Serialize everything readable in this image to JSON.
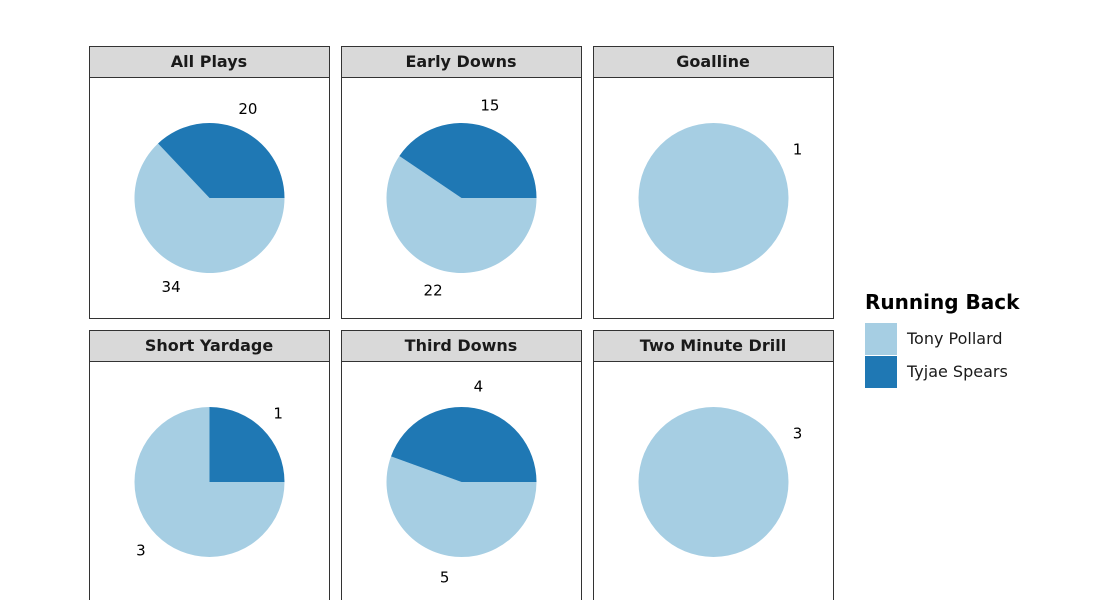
{
  "chart_data": {
    "type": "pie",
    "title": "",
    "legend": {
      "title": "Running Back",
      "placement": "right",
      "entries": [
        {
          "name": "Tony Pollard",
          "color": "#a6cee3"
        },
        {
          "name": "Tyjae Spears",
          "color": "#1f78b4"
        }
      ]
    },
    "panels": [
      {
        "name": "All Plays",
        "values": [
          34,
          20
        ]
      },
      {
        "name": "Early Downs",
        "values": [
          22,
          15
        ]
      },
      {
        "name": "Goalline",
        "values": [
          1,
          0
        ]
      },
      {
        "name": "Short Yardage",
        "values": [
          3,
          1
        ]
      },
      {
        "name": "Third Downs",
        "values": [
          5,
          4
        ]
      },
      {
        "name": "Two Minute Drill",
        "values": [
          3,
          0
        ]
      }
    ]
  }
}
